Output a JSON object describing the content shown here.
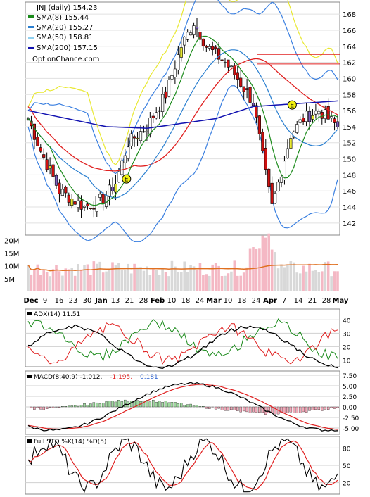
{
  "colors": {
    "sma8": "#1a8a1a",
    "sma20": "#2a7fd0",
    "sma50": "#8fd0f0",
    "sma200": "#1010b0",
    "red": "#e02020",
    "bb": "#3a7fe0",
    "yellow": "#e8e830",
    "volAvg": "#e07020"
  },
  "legend": {
    "title": "JNJ (daily) 154.23",
    "sma8": "SMA(8) 155.44",
    "sma20": "SMA(20) 155.27",
    "sma50": "SMA(50) 158.81",
    "sma200": "SMA(200) 157.15",
    "site": "OptionChance.com"
  },
  "adx_legend": "ADX(14) 11.51",
  "macd_legend": {
    "base": "MACD(8,40,9) -1.012,",
    "signal": "-1.195,",
    "hist": "0.181"
  },
  "sto_legend": "Full STO %K(14) %D(5)",
  "earnings_marker": "E",
  "chart_data": [
    {
      "type": "candlestick",
      "name": "price",
      "x_labels": [
        "Dec",
        "9",
        "16",
        "23",
        "30",
        "Jan",
        "13",
        "21",
        "28",
        "Feb",
        "10",
        "18",
        "24",
        "Mar",
        "10",
        "18",
        "24",
        "Apr",
        "7",
        "14",
        "21",
        "28",
        "May"
      ],
      "y_ticks": [
        142,
        144,
        146,
        148,
        150,
        152,
        154,
        156,
        158,
        160,
        162,
        164,
        166,
        168
      ],
      "ylim": [
        140.5,
        169.5
      ],
      "close_anchors": [
        [
          0,
          155
        ],
        [
          4,
          151
        ],
        [
          10,
          146
        ],
        [
          18,
          144
        ],
        [
          24,
          145
        ],
        [
          28,
          147
        ],
        [
          32,
          152
        ],
        [
          38,
          154
        ],
        [
          44,
          158
        ],
        [
          49,
          164
        ],
        [
          53,
          167
        ],
        [
          57,
          164
        ],
        [
          63,
          162
        ],
        [
          67,
          160
        ],
        [
          72,
          157
        ],
        [
          76,
          148
        ],
        [
          78,
          144
        ],
        [
          80,
          147
        ],
        [
          84,
          153
        ],
        [
          88,
          155
        ],
        [
          93,
          156
        ],
        [
          99,
          154
        ]
      ],
      "sma200": [
        [
          0,
          156
        ],
        [
          25,
          154
        ],
        [
          38,
          153.8
        ],
        [
          60,
          155
        ],
        [
          72,
          156.5
        ],
        [
          99,
          157.2
        ]
      ],
      "resistance": [
        161.8,
        163
      ]
    },
    {
      "type": "bar",
      "name": "volume",
      "y_ticks": [
        "20M",
        "15M",
        "10M",
        "5M"
      ],
      "y_values": [
        20,
        15,
        10,
        5
      ]
    },
    {
      "type": "line",
      "name": "ADX",
      "y_ticks": [
        40,
        30,
        20,
        10
      ],
      "ylim": [
        5,
        48
      ]
    },
    {
      "type": "line",
      "name": "MACD",
      "y_ticks": [
        "7.50",
        "5.00",
        "2.50",
        "0.00",
        "-2.50",
        "-5.00"
      ],
      "ylim": [
        -6.5,
        8.5
      ]
    },
    {
      "type": "line",
      "name": "Full STO",
      "y_ticks": [
        80,
        50,
        20
      ],
      "ylim": [
        0,
        100
      ]
    }
  ]
}
